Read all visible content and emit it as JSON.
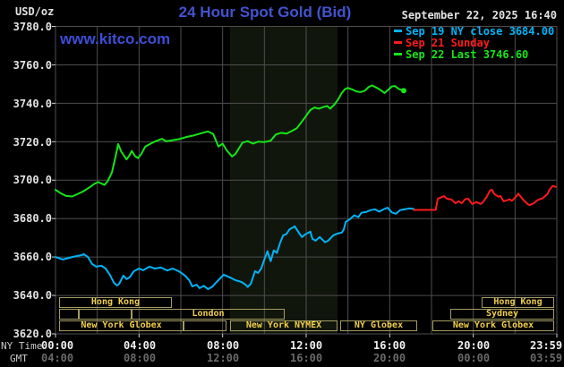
{
  "header": {
    "unit": "USD/oz",
    "title": "24 Hour Spot Gold (Bid)",
    "timestamp": "September 22, 2025 16:40",
    "watermark": "www.kitco.com"
  },
  "colors": {
    "background": "#000000",
    "title_blue": "#4353d0",
    "grid_gray": "#4e4e4e",
    "session_border": "#a49c62",
    "session_text": "#f2d04a",
    "cyan_series": "#00b4f8",
    "red_series": "#ff1a1a",
    "green_series": "#16e616"
  },
  "legend": {
    "items": [
      {
        "label": "Sep 19 NY close 3684.00",
        "color": "#00b4f8"
      },
      {
        "label": "Sep 21 Sunday",
        "color": "#ff1a1a"
      },
      {
        "label": "Sep 22 Last 3746.60",
        "color": "#16e616"
      }
    ]
  },
  "axes": {
    "ny_time_title": "NY Time",
    "gmt_title": "GMT",
    "ny_labels": [
      "00:00",
      "04:00",
      "08:00",
      "12:00",
      "16:00",
      "20:00",
      "23:59"
    ],
    "gmt_labels": [
      "04:00",
      "08:00",
      "12:00",
      "16:00",
      "20:00",
      "00:00",
      "03:59"
    ],
    "y_labels": [
      "3780.0",
      "3760.0",
      "3740.0",
      "3720.0",
      "3700.0",
      "3680.0",
      "3660.0",
      "3640.0",
      "3620.0"
    ]
  },
  "sessions": [
    {
      "label": "Hong Kong"
    },
    {
      "label": "Hong Kong"
    },
    {
      "label": ""
    },
    {
      "label": ""
    },
    {
      "label": "London"
    },
    {
      "label": "Sydney"
    },
    {
      "label": "New York Globex"
    },
    {
      "label": ""
    },
    {
      "label": "New York NYMEX"
    },
    {
      "label": "NY Globex"
    },
    {
      "label": "New York Globex"
    }
  ],
  "chart_data": {
    "type": "line",
    "title": "24 Hour Spot Gold (Bid)",
    "ylabel": "USD/oz",
    "grid": true,
    "grid_color": "#4e4e4e",
    "legend_position": "top-right",
    "x_axis": {
      "min_hour": 0,
      "max_hour": 24,
      "grid_step_hours": 2,
      "tick_step_hours": 4
    },
    "y_axis": {
      "min": 3620,
      "max": 3780,
      "step": 20
    },
    "shaded_region": {
      "start_hour": 8.35,
      "end_hour": 13.5,
      "color": "#11160c"
    },
    "series": [
      {
        "id": "sep19-ny-close",
        "name": "Sep 19 NY close",
        "color": "#00b4f8",
        "close": 3684.0,
        "points": [
          [
            0,
            3660
          ],
          [
            0.35,
            3658.7
          ],
          [
            0.8,
            3660
          ],
          [
            1.25,
            3661
          ],
          [
            1.35,
            3661.5
          ],
          [
            1.55,
            3660
          ],
          [
            1.75,
            3656.4
          ],
          [
            1.95,
            3655
          ],
          [
            2.2,
            3655.5
          ],
          [
            2.4,
            3654
          ],
          [
            2.6,
            3650.8
          ],
          [
            2.8,
            3646.6
          ],
          [
            2.95,
            3645.2
          ],
          [
            3.05,
            3646.1
          ],
          [
            3.25,
            3650.3
          ],
          [
            3.4,
            3648.5
          ],
          [
            3.55,
            3649.4
          ],
          [
            3.75,
            3652.6
          ],
          [
            4,
            3654
          ],
          [
            4.2,
            3653.1
          ],
          [
            4.5,
            3655
          ],
          [
            4.75,
            3654
          ],
          [
            5.05,
            3654.5
          ],
          [
            5.35,
            3653
          ],
          [
            5.6,
            3654
          ],
          [
            5.9,
            3652.6
          ],
          [
            6.2,
            3650.3
          ],
          [
            6.4,
            3648
          ],
          [
            6.55,
            3644.7
          ],
          [
            6.75,
            3645.6
          ],
          [
            6.9,
            3643.8
          ],
          [
            7.1,
            3645
          ],
          [
            7.3,
            3643.3
          ],
          [
            7.5,
            3644.5
          ],
          [
            7.8,
            3648
          ],
          [
            8.05,
            3650.8
          ],
          [
            8.35,
            3649.4
          ],
          [
            8.6,
            3648
          ],
          [
            8.9,
            3647
          ],
          [
            9.1,
            3645.6
          ],
          [
            9.2,
            3644.4
          ],
          [
            9.35,
            3646.1
          ],
          [
            9.55,
            3652.6
          ],
          [
            9.7,
            3651.7
          ],
          [
            9.85,
            3654
          ],
          [
            9.97,
            3657.8
          ],
          [
            10.15,
            3663
          ],
          [
            10.3,
            3657.8
          ],
          [
            10.45,
            3663.4
          ],
          [
            10.6,
            3662.1
          ],
          [
            10.75,
            3667.3
          ],
          [
            10.9,
            3671.3
          ],
          [
            11.05,
            3671.9
          ],
          [
            11.2,
            3674.3
          ],
          [
            11.45,
            3676
          ],
          [
            11.65,
            3672.7
          ],
          [
            11.8,
            3670.4
          ],
          [
            11.97,
            3671.9
          ],
          [
            12.2,
            3673.2
          ],
          [
            12.3,
            3669.4
          ],
          [
            12.45,
            3668.5
          ],
          [
            12.65,
            3670.4
          ],
          [
            12.9,
            3667.7
          ],
          [
            13.05,
            3668.5
          ],
          [
            13.3,
            3671.3
          ],
          [
            13.5,
            3672.2
          ],
          [
            13.7,
            3672.7
          ],
          [
            13.8,
            3674.3
          ],
          [
            13.9,
            3678.3
          ],
          [
            14.1,
            3679.7
          ],
          [
            14.3,
            3681.7
          ],
          [
            14.5,
            3680.8
          ],
          [
            14.65,
            3683
          ],
          [
            14.85,
            3683.4
          ],
          [
            15.1,
            3684.4
          ],
          [
            15.3,
            3684.8
          ],
          [
            15.5,
            3683.6
          ],
          [
            15.7,
            3684.8
          ],
          [
            15.9,
            3685.7
          ],
          [
            16.1,
            3683.2
          ],
          [
            16.3,
            3682.5
          ],
          [
            16.5,
            3684.4
          ],
          [
            16.7,
            3684.8
          ],
          [
            16.95,
            3685.3
          ],
          [
            17.15,
            3685
          ]
        ]
      },
      {
        "id": "sep21-sunday",
        "name": "Sep 21 Sunday",
        "color": "#ff1a1a",
        "points": [
          [
            17.15,
            3684.5
          ],
          [
            18.2,
            3684.5
          ],
          [
            18.3,
            3690.3
          ],
          [
            18.6,
            3691.7
          ],
          [
            18.75,
            3690.3
          ],
          [
            18.95,
            3689.9
          ],
          [
            19.15,
            3688
          ],
          [
            19.3,
            3689
          ],
          [
            19.45,
            3688
          ],
          [
            19.6,
            3690
          ],
          [
            19.75,
            3690.4
          ],
          [
            19.95,
            3687.6
          ],
          [
            20.15,
            3688.6
          ],
          [
            20.35,
            3687.6
          ],
          [
            20.45,
            3688.4
          ],
          [
            20.65,
            3691.4
          ],
          [
            20.8,
            3694.6
          ],
          [
            20.9,
            3695
          ],
          [
            21,
            3692.8
          ],
          [
            21.2,
            3691.4
          ],
          [
            21.3,
            3691.8
          ],
          [
            21.45,
            3689
          ],
          [
            21.75,
            3690
          ],
          [
            21.85,
            3689.2
          ],
          [
            22.05,
            3691.4
          ],
          [
            22.15,
            3693
          ],
          [
            22.4,
            3689.7
          ],
          [
            22.6,
            3687.6
          ],
          [
            22.7,
            3687
          ],
          [
            22.9,
            3688
          ],
          [
            23,
            3689
          ],
          [
            23.15,
            3690
          ],
          [
            23.3,
            3690.4
          ],
          [
            23.55,
            3692.8
          ],
          [
            23.65,
            3695
          ],
          [
            23.8,
            3697
          ],
          [
            23.95,
            3696.5
          ]
        ]
      },
      {
        "id": "sep22-last",
        "name": "Sep 22",
        "color": "#16e616",
        "last": 3746.6,
        "end_marker": true,
        "points": [
          [
            0,
            3695
          ],
          [
            0.2,
            3693.5
          ],
          [
            0.5,
            3691.8
          ],
          [
            0.8,
            3691.5
          ],
          [
            1,
            3692.5
          ],
          [
            1.3,
            3694
          ],
          [
            1.6,
            3696
          ],
          [
            1.85,
            3698
          ],
          [
            2.05,
            3699
          ],
          [
            2.2,
            3698.2
          ],
          [
            2.35,
            3697.5
          ],
          [
            2.5,
            3699.5
          ],
          [
            2.7,
            3704
          ],
          [
            2.85,
            3711
          ],
          [
            3,
            3718.8
          ],
          [
            3.15,
            3714.8
          ],
          [
            3.4,
            3710.8
          ],
          [
            3.55,
            3713
          ],
          [
            3.65,
            3715.2
          ],
          [
            3.8,
            3712.5
          ],
          [
            3.95,
            3711.5
          ],
          [
            4.1,
            3713.5
          ],
          [
            4.3,
            3717.5
          ],
          [
            4.55,
            3719
          ],
          [
            4.8,
            3720.3
          ],
          [
            5.1,
            3721.5
          ],
          [
            5.3,
            3720.2
          ],
          [
            5.6,
            3720.8
          ],
          [
            5.9,
            3721.3
          ],
          [
            6.3,
            3722.5
          ],
          [
            6.6,
            3723.2
          ],
          [
            7,
            3724.5
          ],
          [
            7.3,
            3725.3
          ],
          [
            7.55,
            3724
          ],
          [
            7.8,
            3717.5
          ],
          [
            8,
            3719
          ],
          [
            8.2,
            3715.5
          ],
          [
            8.45,
            3712.3
          ],
          [
            8.6,
            3713.5
          ],
          [
            8.75,
            3716
          ],
          [
            8.95,
            3719.5
          ],
          [
            9.2,
            3720.3
          ],
          [
            9.45,
            3719
          ],
          [
            9.7,
            3720
          ],
          [
            10,
            3719.8
          ],
          [
            10.3,
            3720.5
          ],
          [
            10.55,
            3723.8
          ],
          [
            10.8,
            3724.6
          ],
          [
            11.05,
            3724.2
          ],
          [
            11.3,
            3725.5
          ],
          [
            11.55,
            3727
          ],
          [
            11.8,
            3730.5
          ],
          [
            12,
            3733.5
          ],
          [
            12.2,
            3736.5
          ],
          [
            12.4,
            3737.8
          ],
          [
            12.6,
            3737.2
          ],
          [
            12.8,
            3738
          ],
          [
            13,
            3738.6
          ],
          [
            13.15,
            3737.2
          ],
          [
            13.35,
            3739.3
          ],
          [
            13.5,
            3741.5
          ],
          [
            13.7,
            3745.3
          ],
          [
            13.85,
            3747.3
          ],
          [
            14,
            3748
          ],
          [
            14.2,
            3747.2
          ],
          [
            14.4,
            3746.2
          ],
          [
            14.6,
            3745.8
          ],
          [
            14.8,
            3746.5
          ],
          [
            15,
            3748.5
          ],
          [
            15.15,
            3749.3
          ],
          [
            15.35,
            3748.2
          ],
          [
            15.55,
            3747
          ],
          [
            15.75,
            3745.3
          ],
          [
            15.95,
            3747.3
          ],
          [
            16.1,
            3748.8
          ],
          [
            16.25,
            3749
          ],
          [
            16.45,
            3747.3
          ],
          [
            16.67,
            3746.6
          ]
        ]
      }
    ]
  }
}
